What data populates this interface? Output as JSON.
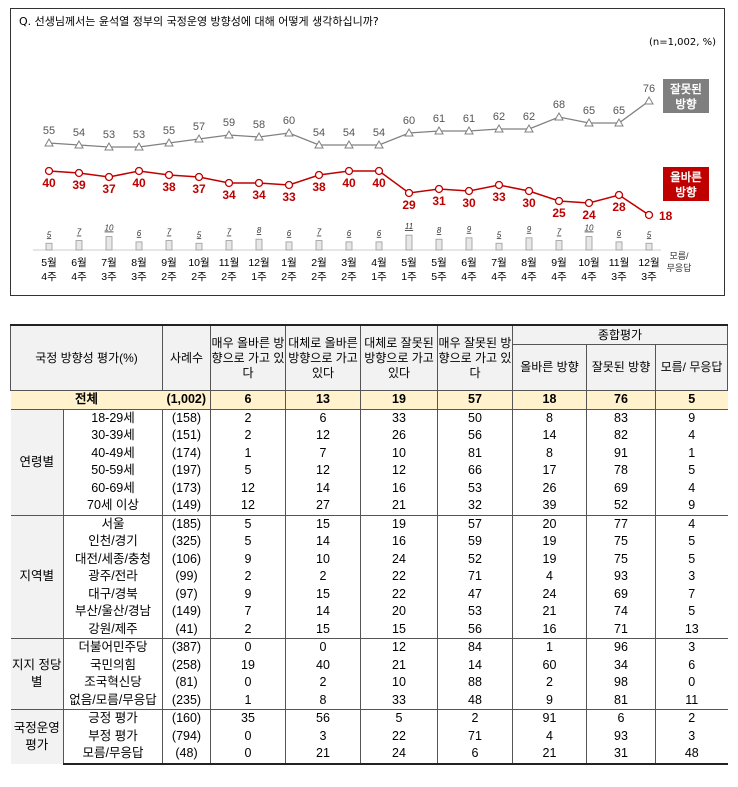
{
  "question": "Q. 선생님께서는 윤석열 정부의 국정운영 방향성에 대해 어떻게 생각하십니까?",
  "unit_note": "(n=1,002, %)",
  "chart_data": {
    "type": "line",
    "categories": [
      "5월 4주",
      "6월 4주",
      "7월 3주",
      "8월 3주",
      "9월 2주",
      "10월 2주",
      "11월 2주",
      "12월 1주",
      "1월 2주",
      "2월 2주",
      "3월 2주",
      "4월 1주",
      "5월 1주",
      "5월 5주",
      "6월 4주",
      "7월 4주",
      "8월 4주",
      "9월 4주",
      "10월 4주",
      "11월 3주",
      "12월 3주"
    ],
    "series": [
      {
        "name": "잘못된 방향",
        "color": "#808080",
        "marker": "triangle",
        "values": [
          55,
          54,
          53,
          53,
          55,
          57,
          59,
          58,
          60,
          54,
          54,
          54,
          60,
          61,
          61,
          62,
          62,
          68,
          65,
          65,
          76
        ]
      },
      {
        "name": "올바른 방향",
        "color": "#c00000",
        "marker": "circle",
        "values": [
          40,
          39,
          37,
          40,
          38,
          37,
          34,
          34,
          33,
          38,
          40,
          40,
          29,
          31,
          30,
          33,
          30,
          25,
          24,
          28,
          18
        ]
      },
      {
        "name": "모름/ 무응답",
        "type": "bar",
        "color": "#e8e8e8",
        "values": [
          5,
          7,
          10,
          6,
          7,
          5,
          7,
          8,
          6,
          7,
          6,
          6,
          11,
          8,
          9,
          5,
          9,
          7,
          10,
          6,
          5
        ]
      }
    ]
  },
  "table": {
    "header": {
      "title": "국정 방향성 평가(%)",
      "n": "사례수",
      "c1": "매우 올바른 방향으로 가고 있다",
      "c2": "대체로 올바른 방향으로 가고 있다",
      "c3": "대체로 잘못된 방향으로 가고 있다",
      "c4": "매우 잘못된 방향으로 가고 있다",
      "summary": "종합평가",
      "s1": "올바른 방향",
      "s2": "잘못된 방향",
      "s3": "모름/ 무응답"
    },
    "total": {
      "label": "전체",
      "n": "(1,002)",
      "v": [
        "6",
        "13",
        "19",
        "57",
        "18",
        "76",
        "5"
      ]
    },
    "groups": [
      {
        "name": "연령별",
        "rows": [
          [
            "18-29세",
            "(158)",
            "2",
            "6",
            "33",
            "50",
            "8",
            "83",
            "9"
          ],
          [
            "30-39세",
            "(151)",
            "2",
            "12",
            "26",
            "56",
            "14",
            "82",
            "4"
          ],
          [
            "40-49세",
            "(174)",
            "1",
            "7",
            "10",
            "81",
            "8",
            "91",
            "1"
          ],
          [
            "50-59세",
            "(197)",
            "5",
            "12",
            "12",
            "66",
            "17",
            "78",
            "5"
          ],
          [
            "60-69세",
            "(173)",
            "12",
            "14",
            "16",
            "53",
            "26",
            "69",
            "4"
          ],
          [
            "70세 이상",
            "(149)",
            "12",
            "27",
            "21",
            "32",
            "39",
            "52",
            "9"
          ]
        ]
      },
      {
        "name": "지역별",
        "rows": [
          [
            "서울",
            "(185)",
            "5",
            "15",
            "19",
            "57",
            "20",
            "77",
            "4"
          ],
          [
            "인천/경기",
            "(325)",
            "5",
            "14",
            "16",
            "59",
            "19",
            "75",
            "5"
          ],
          [
            "대전/세종/충청",
            "(106)",
            "9",
            "10",
            "24",
            "52",
            "19",
            "75",
            "5"
          ],
          [
            "광주/전라",
            "(99)",
            "2",
            "2",
            "22",
            "71",
            "4",
            "93",
            "3"
          ],
          [
            "대구/경북",
            "(97)",
            "9",
            "15",
            "22",
            "47",
            "24",
            "69",
            "7"
          ],
          [
            "부산/울산/경남",
            "(149)",
            "7",
            "14",
            "20",
            "53",
            "21",
            "74",
            "5"
          ],
          [
            "강원/제주",
            "(41)",
            "2",
            "15",
            "15",
            "56",
            "16",
            "71",
            "13"
          ]
        ]
      },
      {
        "name": "지지 정당별",
        "rows": [
          [
            "더불어민주당",
            "(387)",
            "0",
            "0",
            "12",
            "84",
            "1",
            "96",
            "3"
          ],
          [
            "국민의힘",
            "(258)",
            "19",
            "40",
            "21",
            "14",
            "60",
            "34",
            "6"
          ],
          [
            "조국혁신당",
            "(81)",
            "0",
            "2",
            "10",
            "88",
            "2",
            "98",
            "0"
          ],
          [
            "없음/모름/무응답",
            "(235)",
            "1",
            "8",
            "33",
            "48",
            "9",
            "81",
            "11"
          ]
        ]
      },
      {
        "name": "국정운영 평가",
        "rows": [
          [
            "긍정 평가",
            "(160)",
            "35",
            "56",
            "5",
            "2",
            "91",
            "6",
            "2"
          ],
          [
            "부정 평가",
            "(794)",
            "0",
            "3",
            "22",
            "71",
            "4",
            "93",
            "3"
          ],
          [
            "모름/무응답",
            "(48)",
            "0",
            "21",
            "24",
            "6",
            "21",
            "31",
            "48"
          ]
        ]
      }
    ]
  }
}
